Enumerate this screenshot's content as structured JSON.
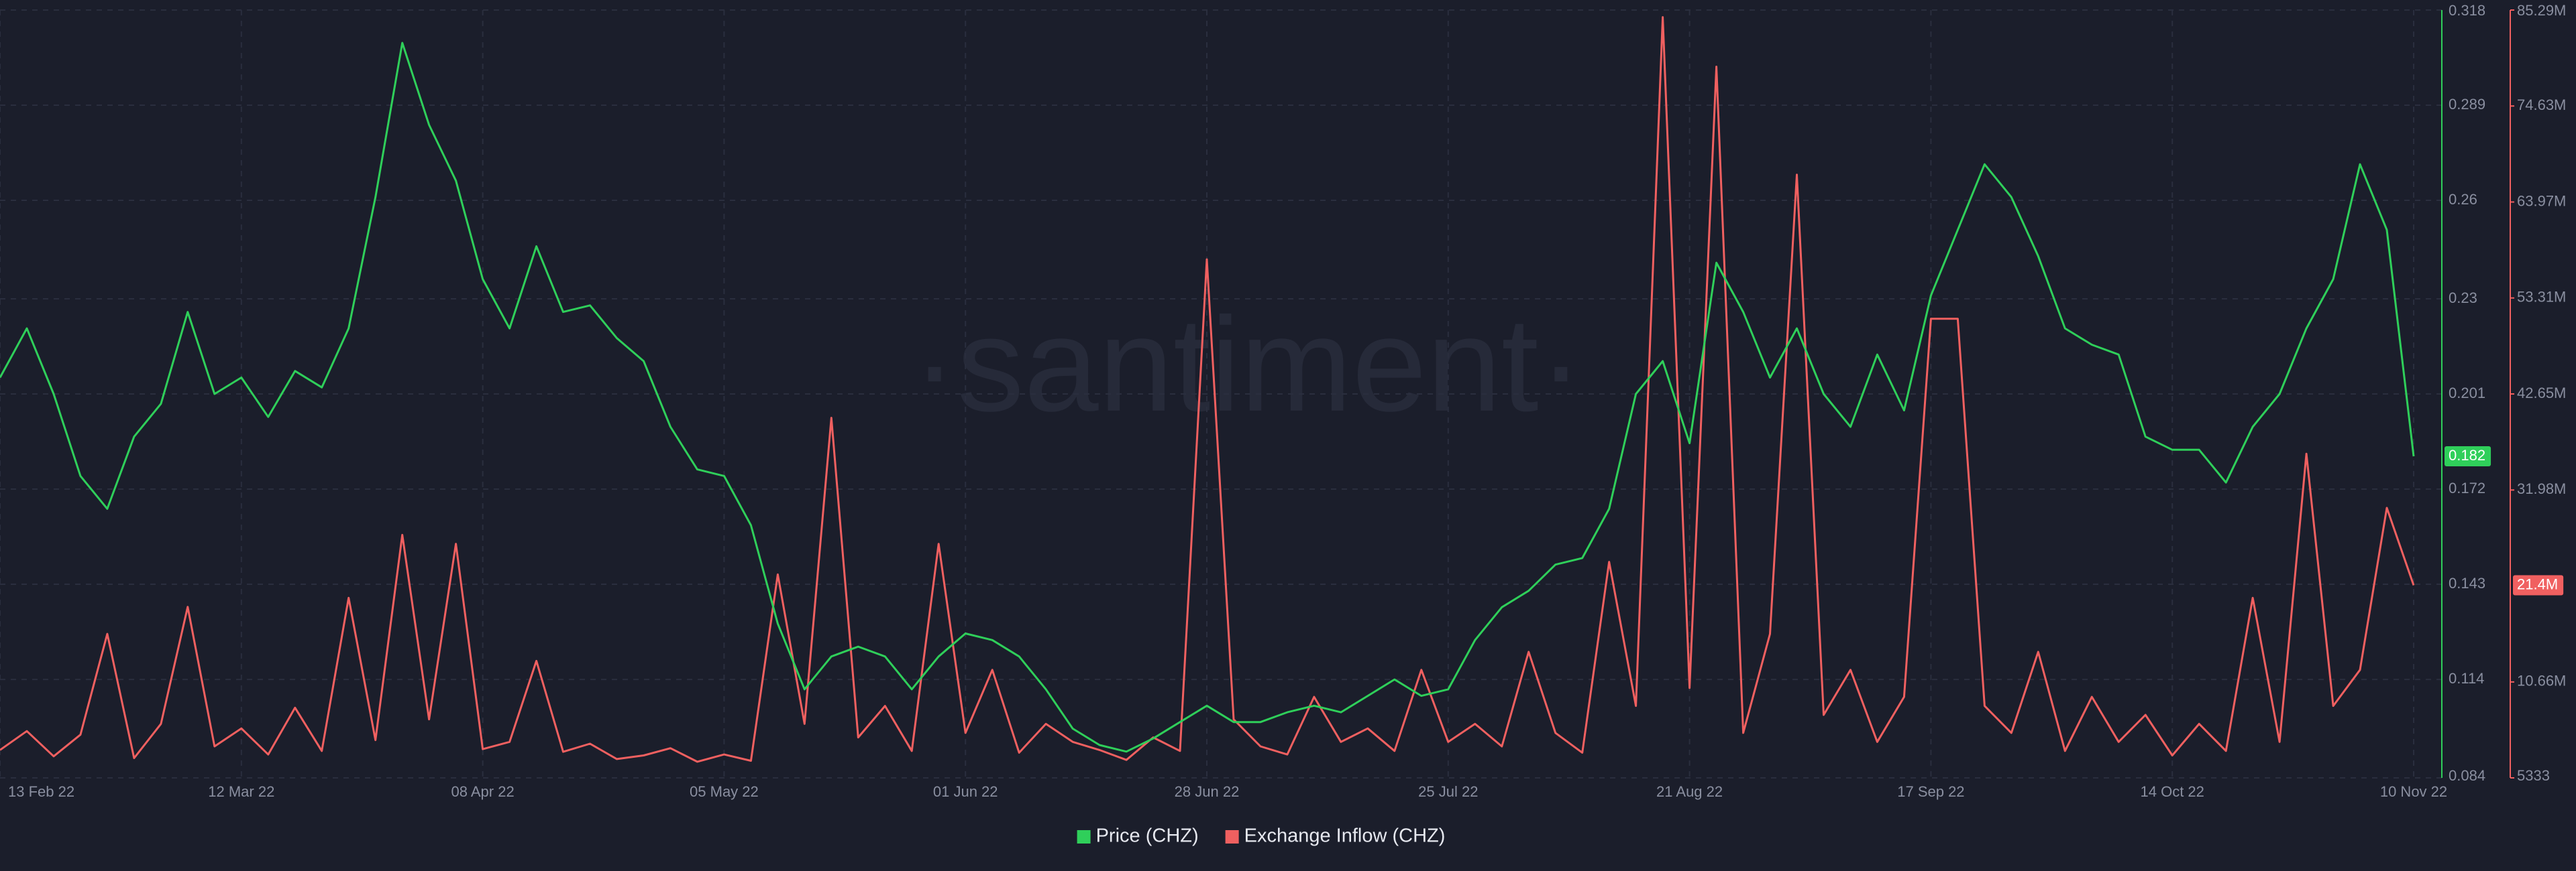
{
  "chart_data": {
    "type": "line",
    "watermark": "·santiment·",
    "x": [
      "2022-02-13",
      "2022-02-16",
      "2022-02-19",
      "2022-02-22",
      "2022-02-25",
      "2022-02-28",
      "2022-03-03",
      "2022-03-06",
      "2022-03-09",
      "2022-03-12",
      "2022-03-15",
      "2022-03-18",
      "2022-03-21",
      "2022-03-24",
      "2022-03-27",
      "2022-03-30",
      "2022-04-02",
      "2022-04-05",
      "2022-04-08",
      "2022-04-11",
      "2022-04-14",
      "2022-04-17",
      "2022-04-20",
      "2022-04-23",
      "2022-04-26",
      "2022-04-29",
      "2022-05-02",
      "2022-05-05",
      "2022-05-08",
      "2022-05-11",
      "2022-05-14",
      "2022-05-17",
      "2022-05-20",
      "2022-05-23",
      "2022-05-26",
      "2022-05-29",
      "2022-06-01",
      "2022-06-04",
      "2022-06-07",
      "2022-06-10",
      "2022-06-13",
      "2022-06-16",
      "2022-06-19",
      "2022-06-22",
      "2022-06-25",
      "2022-06-28",
      "2022-07-01",
      "2022-07-04",
      "2022-07-07",
      "2022-07-10",
      "2022-07-13",
      "2022-07-16",
      "2022-07-19",
      "2022-07-22",
      "2022-07-25",
      "2022-07-28",
      "2022-07-31",
      "2022-08-03",
      "2022-08-06",
      "2022-08-09",
      "2022-08-12",
      "2022-08-15",
      "2022-08-18",
      "2022-08-21",
      "2022-08-24",
      "2022-08-27",
      "2022-08-30",
      "2022-09-02",
      "2022-09-05",
      "2022-09-08",
      "2022-09-11",
      "2022-09-14",
      "2022-09-17",
      "2022-09-20",
      "2022-09-23",
      "2022-09-26",
      "2022-09-29",
      "2022-10-02",
      "2022-10-05",
      "2022-10-08",
      "2022-10-11",
      "2022-10-14",
      "2022-10-17",
      "2022-10-20",
      "2022-10-23",
      "2022-10-26",
      "2022-10-29",
      "2022-11-01",
      "2022-11-04",
      "2022-11-07",
      "2022-11-10"
    ],
    "xlim": [
      "2022-02-13",
      "2022-11-10"
    ],
    "xticks": [
      {
        "value": "2022-02-13",
        "label": "13 Feb 22"
      },
      {
        "value": "2022-03-12",
        "label": "12 Mar 22"
      },
      {
        "value": "2022-04-08",
        "label": "08 Apr 22"
      },
      {
        "value": "2022-05-05",
        "label": "05 May 22"
      },
      {
        "value": "2022-06-01",
        "label": "01 Jun 22"
      },
      {
        "value": "2022-06-28",
        "label": "28 Jun 22"
      },
      {
        "value": "2022-07-25",
        "label": "25 Jul 22"
      },
      {
        "value": "2022-08-21",
        "label": "21 Aug 22"
      },
      {
        "value": "2022-09-17",
        "label": "17 Sep 22"
      },
      {
        "value": "2022-10-14",
        "label": "14 Oct 22"
      },
      {
        "value": "2022-11-10",
        "label": "10 Nov 22"
      }
    ],
    "ylim": [
      0.084,
      0.318
    ],
    "yticks": [
      0.084,
      0.114,
      0.143,
      0.172,
      0.201,
      0.23,
      0.26,
      0.289,
      0.318
    ],
    "y2lim": [
      5333,
      85290000
    ],
    "y2ticks": [
      5333,
      {
        "value": 10660000,
        "label": "10.66M"
      },
      {
        "value": 31980000,
        "label": "31.98M"
      },
      {
        "value": 42650000,
        "label": "42.65M"
      },
      {
        "value": 53310000,
        "label": "53.31M"
      },
      {
        "value": 63970000,
        "label": "63.97M"
      },
      {
        "value": 74630000,
        "label": "74.63M"
      },
      {
        "value": 85290000,
        "label": "85.29M"
      }
    ],
    "grid": true,
    "legend": "bottom",
    "series": [
      {
        "name": "Price (CHZ)",
        "color": "#2fcf5a",
        "axis": "y",
        "values": [
          0.206,
          0.221,
          0.201,
          0.176,
          0.166,
          0.188,
          0.198,
          0.226,
          0.201,
          0.206,
          0.194,
          0.208,
          0.203,
          0.221,
          0.261,
          0.308,
          0.283,
          0.266,
          0.236,
          0.221,
          0.246,
          0.226,
          0.228,
          0.218,
          0.211,
          0.191,
          0.178,
          0.176,
          0.161,
          0.131,
          0.111,
          0.121,
          0.124,
          0.121,
          0.111,
          0.121,
          0.128,
          0.126,
          0.121,
          0.111,
          0.099,
          0.094,
          0.092,
          0.096,
          0.101,
          0.106,
          0.101,
          0.101,
          0.104,
          0.106,
          0.104,
          0.109,
          0.114,
          0.109,
          0.111,
          0.126,
          0.136,
          0.141,
          0.149,
          0.151,
          0.166,
          0.201,
          0.211,
          0.186,
          0.241,
          0.226,
          0.206,
          0.221,
          0.201,
          0.191,
          0.213,
          0.196,
          0.231,
          0.251,
          0.271,
          0.261,
          0.243,
          0.221,
          0.216,
          0.213,
          0.188,
          0.184,
          0.184,
          0.174,
          0.191,
          0.201,
          0.221,
          0.236,
          0.271,
          0.251,
          0.182
        ]
      },
      {
        "name": "Exchange Inflow (CHZ)",
        "color": "#f06060",
        "axis": "y2",
        "values": [
          3100000,
          5200000,
          2400000,
          4800000,
          16000000,
          2200000,
          6000000,
          19000000,
          3500000,
          5500000,
          2600000,
          7800000,
          3000000,
          20000000,
          4200000,
          27000000,
          6500000,
          26000000,
          3200000,
          4000000,
          13000000,
          2900000,
          3800000,
          2100000,
          2500000,
          3300000,
          1800000,
          2600000,
          1900000,
          22600000,
          6000000,
          40000000,
          4500000,
          8000000,
          3000000,
          26000000,
          5000000,
          12000000,
          2800000,
          6000000,
          4000000,
          3100000,
          2000000,
          4500000,
          3000000,
          57600000,
          6500000,
          3500000,
          2600000,
          9000000,
          4000000,
          5500000,
          3000000,
          12000000,
          4000000,
          6000000,
          3500000,
          14000000,
          5000000,
          2800000,
          24000000,
          8000000,
          84500000,
          10000000,
          79000000,
          5000000,
          16000000,
          67000000,
          7000000,
          12000000,
          4000000,
          9000000,
          51000000,
          51000000,
          8000000,
          5000000,
          14000000,
          3000000,
          9000000,
          4000000,
          7000000,
          2500000,
          6000000,
          3000000,
          20000000,
          4000000,
          36000000,
          8000000,
          12000000,
          30000000,
          21400000
        ],
        "value_labels": [
          null,
          null,
          null,
          null,
          null,
          null,
          null,
          null,
          null,
          null,
          null,
          null,
          null,
          null,
          null,
          null,
          null,
          null,
          null,
          null,
          null,
          null,
          null,
          null,
          null,
          null,
          null,
          null,
          null,
          null,
          null,
          null,
          null,
          null,
          null,
          null,
          null,
          null,
          null,
          null,
          null,
          null,
          null,
          null,
          null,
          null,
          null,
          null,
          null,
          null,
          null,
          null,
          null,
          null,
          null,
          null,
          null,
          null,
          null,
          null,
          null,
          null,
          null,
          null,
          null,
          null,
          null,
          null,
          null,
          null,
          null,
          null,
          null,
          null,
          null,
          null,
          null,
          null,
          null,
          null,
          null,
          null,
          null,
          null,
          null,
          null,
          null,
          null,
          null,
          null,
          "21.4M"
        ]
      }
    ]
  }
}
